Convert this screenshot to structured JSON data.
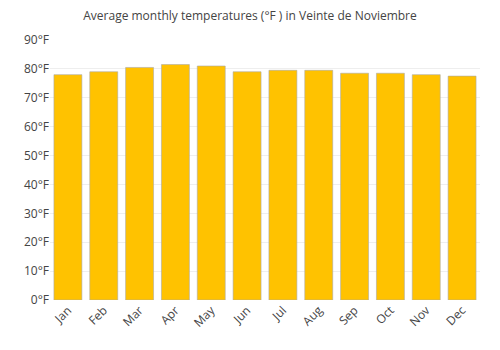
{
  "chart_data": {
    "type": "bar",
    "title": "Average monthly temperatures (°F ) in Veinte de Noviembre",
    "categories": [
      "Jan",
      "Feb",
      "Mar",
      "Apr",
      "May",
      "Jun",
      "Jul",
      "Aug",
      "Sep",
      "Oct",
      "Nov",
      "Dec"
    ],
    "values": [
      78.0,
      79.0,
      80.5,
      81.5,
      81.0,
      79.0,
      79.5,
      79.5,
      78.5,
      78.5,
      78.0,
      77.5
    ],
    "color": "#FFC200",
    "ylim": [
      0,
      90
    ],
    "yticks": [
      {
        "value": 0,
        "label": "0°F"
      },
      {
        "value": 10,
        "label": "10°F"
      },
      {
        "value": 20,
        "label": "20°F"
      },
      {
        "value": 30,
        "label": "30°F"
      },
      {
        "value": 40,
        "label": "40°F"
      },
      {
        "value": 50,
        "label": "50°F"
      },
      {
        "value": 60,
        "label": "60°F"
      },
      {
        "value": 70,
        "label": "70°F"
      },
      {
        "value": 80,
        "label": "80°F"
      },
      {
        "value": 90,
        "label": "90°F"
      }
    ],
    "grid": true
  }
}
